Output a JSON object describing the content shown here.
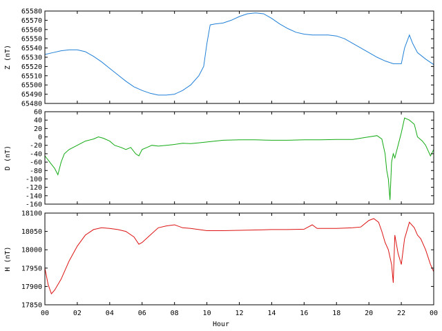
{
  "chart_data": {
    "type": "line",
    "xlabel": "Hour",
    "x_ticks": [
      "00",
      "02",
      "04",
      "06",
      "08",
      "10",
      "12",
      "14",
      "16",
      "18",
      "20",
      "22",
      "00"
    ],
    "xlim": [
      0,
      24
    ],
    "panels": [
      {
        "ylabel": "Z (nT)",
        "color": "#1f7fd8",
        "ylim": [
          65480,
          65580
        ],
        "y_ticks": [
          65480,
          65490,
          65500,
          65510,
          65520,
          65530,
          65540,
          65550,
          65560,
          65570,
          65580
        ],
        "series": {
          "x": [
            0,
            0.5,
            1,
            1.5,
            2,
            2.5,
            3,
            3.5,
            4,
            4.5,
            5,
            5.5,
            6,
            6.5,
            7,
            7.5,
            8,
            8.5,
            9,
            9.5,
            9.8,
            10,
            10.2,
            10.5,
            11,
            11.5,
            12,
            12.5,
            13,
            13.5,
            14,
            14.5,
            15,
            15.5,
            16,
            16.5,
            17,
            17.5,
            18,
            18.5,
            19,
            19.5,
            20,
            20.5,
            21,
            21.5,
            22,
            22.2,
            22.5,
            22.7,
            23,
            23.5,
            24
          ],
          "y": [
            65533,
            65535,
            65537,
            65538,
            65538,
            65536,
            65531,
            65525,
            65518,
            65511,
            65504,
            65498,
            65494,
            65491,
            65489,
            65489,
            65490,
            65494,
            65500,
            65510,
            65520,
            65545,
            65565,
            65566,
            65567,
            65570,
            65574,
            65577,
            65578,
            65577,
            65572,
            65566,
            65561,
            65557,
            65555,
            65554,
            65554,
            65554,
            65553,
            65550,
            65545,
            65540,
            65535,
            65530,
            65526,
            65523,
            65523,
            65540,
            65554,
            65545,
            65535,
            65528,
            65522
          ]
        }
      },
      {
        "ylabel": "D (nT)",
        "color": "#11aa11",
        "ylim": [
          -160,
          60
        ],
        "y_ticks": [
          -160,
          -140,
          -120,
          -100,
          -80,
          -60,
          -40,
          -20,
          0,
          20,
          40,
          60
        ],
        "series": {
          "x": [
            0,
            0.3,
            0.6,
            0.8,
            1,
            1.2,
            1.5,
            2,
            2.5,
            3,
            3.3,
            3.6,
            4,
            4.3,
            4.7,
            5,
            5.3,
            5.6,
            5.8,
            6,
            6.3,
            6.6,
            7,
            7.5,
            8,
            8.5,
            9,
            9.5,
            10,
            11,
            12,
            13,
            14,
            15,
            16,
            17,
            18,
            19,
            20,
            20.5,
            20.8,
            21,
            21.1,
            21.2,
            21.3,
            21.4,
            21.5,
            21.6,
            21.8,
            22,
            22.2,
            22.5,
            22.8,
            23,
            23.3,
            23.5,
            23.8,
            24
          ],
          "y": [
            -45,
            -60,
            -75,
            -90,
            -60,
            -40,
            -30,
            -20,
            -10,
            -5,
            0,
            -3,
            -10,
            -20,
            -25,
            -30,
            -25,
            -40,
            -45,
            -30,
            -25,
            -20,
            -22,
            -20,
            -18,
            -15,
            -16,
            -14,
            -12,
            -8,
            -7,
            -7,
            -8,
            -8,
            -7,
            -7,
            -6,
            -6,
            0,
            3,
            -5,
            -40,
            -80,
            -100,
            -150,
            -60,
            -40,
            -50,
            -20,
            10,
            45,
            40,
            30,
            0,
            -10,
            -20,
            -45,
            -30
          ]
        }
      },
      {
        "ylabel": "H (nT)",
        "color": "#dd1111",
        "ylim": [
          17850,
          18100
        ],
        "y_ticks": [
          17850,
          17900,
          17950,
          18000,
          18050,
          18100
        ],
        "series": {
          "x": [
            0,
            0.2,
            0.4,
            0.6,
            0.8,
            1,
            1.5,
            2,
            2.5,
            3,
            3.5,
            4,
            4.5,
            5,
            5.5,
            5.8,
            6,
            6.5,
            7,
            7.5,
            8,
            8.5,
            9,
            9.5,
            10,
            11,
            12,
            13,
            14,
            15,
            16,
            16.5,
            16.8,
            17,
            18,
            19,
            19.5,
            20,
            20.3,
            20.6,
            20.8,
            21,
            21.2,
            21.4,
            21.5,
            21.6,
            21.8,
            22,
            22.2,
            22.5,
            22.8,
            23,
            23.2,
            23.5,
            23.8,
            24
          ],
          "y": [
            17950,
            17905,
            17880,
            17890,
            17905,
            17920,
            17970,
            18010,
            18040,
            18055,
            18060,
            18058,
            18055,
            18050,
            18035,
            18015,
            18020,
            18040,
            18060,
            18065,
            18068,
            18060,
            18058,
            18055,
            18052,
            18052,
            18053,
            18054,
            18055,
            18055,
            18056,
            18068,
            18058,
            18058,
            18058,
            18060,
            18062,
            18080,
            18085,
            18075,
            18050,
            18020,
            18000,
            17960,
            17910,
            18040,
            17990,
            17960,
            18030,
            18075,
            18060,
            18040,
            18030,
            18000,
            17960,
            17940
          ]
        }
      }
    ]
  }
}
